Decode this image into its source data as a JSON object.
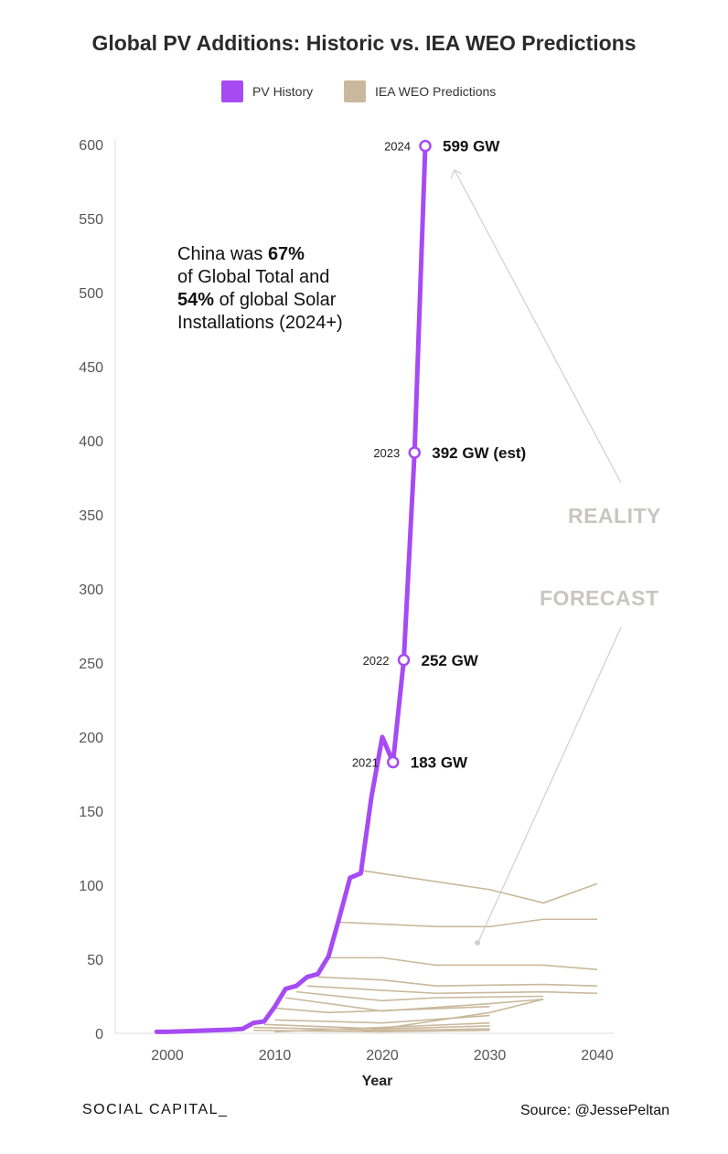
{
  "chart_data": {
    "type": "line",
    "title": "Global PV Additions: Historic vs. IEA WEO Predictions",
    "xlabel": "Year",
    "ylabel": "",
    "xlim": [
      1995,
      2042
    ],
    "ylim": [
      0,
      600
    ],
    "x_ticks": [
      2000,
      2010,
      2020,
      2030,
      2040
    ],
    "y_ticks": [
      0,
      50,
      100,
      150,
      200,
      250,
      300,
      350,
      400,
      450,
      500,
      550,
      600
    ],
    "grid": false,
    "legend_position": "top-center",
    "series": [
      {
        "name": "PV History",
        "color": "#a64bf4",
        "x": [
          1999,
          2000,
          2002,
          2004,
          2006,
          2007,
          2008,
          2009,
          2010,
          2011,
          2012,
          2013,
          2014,
          2015,
          2016,
          2017,
          2018,
          2019,
          2020,
          2021,
          2022,
          2023,
          2024
        ],
        "y": [
          1,
          1,
          1.5,
          2,
          2.5,
          3,
          7,
          8,
          18,
          30,
          32,
          38,
          40,
          52,
          78,
          105,
          108,
          160,
          200,
          183,
          252,
          392,
          599
        ]
      }
    ],
    "forecast_series": {
      "name": "IEA WEO Predictions",
      "color": "#c9b89b",
      "lines": [
        {
          "x": [
            2018,
            2030,
            2035,
            2040
          ],
          "y": [
            110,
            97,
            88,
            101
          ]
        },
        {
          "x": [
            2016,
            2025,
            2030,
            2035,
            2040
          ],
          "y": [
            75,
            72,
            72,
            77,
            77
          ]
        },
        {
          "x": [
            2015,
            2020,
            2025,
            2035,
            2040
          ],
          "y": [
            51,
            51,
            46,
            46,
            43
          ]
        },
        {
          "x": [
            2014,
            2020,
            2025,
            2035,
            2040
          ],
          "y": [
            38,
            36,
            32,
            33,
            32
          ]
        },
        {
          "x": [
            2013,
            2020,
            2025,
            2035,
            2040
          ],
          "y": [
            32,
            29,
            27,
            28,
            27
          ]
        },
        {
          "x": [
            2012,
            2020,
            2025,
            2035
          ],
          "y": [
            28,
            22,
            24,
            25
          ]
        },
        {
          "x": [
            2011,
            2020,
            2030,
            2035
          ],
          "y": [
            24,
            15,
            20,
            23
          ]
        },
        {
          "x": [
            2010,
            2015,
            2030
          ],
          "y": [
            17,
            14,
            18
          ]
        },
        {
          "x": [
            2010,
            2020,
            2030
          ],
          "y": [
            9,
            7,
            12
          ]
        },
        {
          "x": [
            2009,
            2020,
            2030
          ],
          "y": [
            6,
            3,
            5
          ]
        },
        {
          "x": [
            2008,
            2020,
            2030
          ],
          "y": [
            4,
            2,
            3
          ]
        },
        {
          "x": [
            2008,
            2020,
            2030
          ],
          "y": [
            2,
            1,
            2
          ]
        },
        {
          "x": [
            2010,
            2030
          ],
          "y": [
            1,
            7
          ]
        },
        {
          "x": [
            2018,
            2030,
            2035
          ],
          "y": [
            1,
            14,
            23
          ]
        }
      ]
    },
    "point_labels": [
      {
        "x": 2021,
        "y": 183,
        "year": "2021",
        "value": "183 GW"
      },
      {
        "x": 2022,
        "y": 252,
        "year": "2022",
        "value": "252 GW"
      },
      {
        "x": 2023,
        "y": 392,
        "year": "2023",
        "value": "392 GW (est)"
      },
      {
        "x": 2024,
        "y": 599,
        "year": "2024",
        "value": "599 GW"
      }
    ],
    "annotations": {
      "reality": "REALITY",
      "forecast": "FORECAST",
      "china_line1_pre": "China was ",
      "china_line1_bold": "67%",
      "china_line2": "of Global Total and",
      "china_line3_bold": "54%",
      "china_line3_post": " of global Solar",
      "china_line4": "Installations (2024+)"
    }
  },
  "legend": [
    {
      "label": "PV History",
      "color": "#a64bf4"
    },
    {
      "label": "IEA WEO Predictions",
      "color": "#c9b89b"
    }
  ],
  "footer": {
    "brand": "SOCIAL CAPITAL_",
    "source": "Source: @JessePeltan"
  }
}
